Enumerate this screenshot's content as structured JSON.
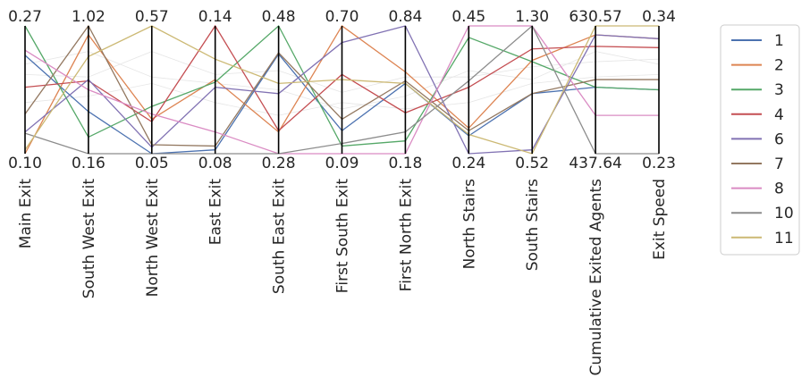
{
  "chart_data": {
    "type": "parallel-coordinates",
    "title": "",
    "axes": [
      {
        "name": "Main Exit",
        "min": "0.10",
        "max": "0.27"
      },
      {
        "name": "South West Exit",
        "min": "0.16",
        "max": "1.02"
      },
      {
        "name": "North West Exit",
        "min": "0.05",
        "max": "0.57"
      },
      {
        "name": "East Exit",
        "min": "0.08",
        "max": "0.14"
      },
      {
        "name": "South East Exit",
        "min": "0.28",
        "max": "0.48"
      },
      {
        "name": "First South Exit",
        "min": "0.09",
        "max": "0.70"
      },
      {
        "name": "First North Exit",
        "min": "0.18",
        "max": "0.84"
      },
      {
        "name": "North Stairs",
        "min": "0.24",
        "max": "0.45"
      },
      {
        "name": "South Stairs",
        "min": "0.52",
        "max": "1.30"
      },
      {
        "name": "Cumulative Exited Agents",
        "min": "437.64",
        "max": "630.57"
      },
      {
        "name": "Exit Speed",
        "min": "0.23",
        "max": "0.34"
      }
    ],
    "series": [
      {
        "name": "1",
        "color": "#4c72b0",
        "values": [
          0.77,
          0.33,
          0.0,
          0.03,
          0.78,
          0.18,
          0.55,
          0.14,
          0.47,
          0.52,
          0.5
        ]
      },
      {
        "name": "2",
        "color": "#dd8452",
        "values": [
          0.0,
          0.93,
          0.27,
          0.58,
          0.17,
          1.0,
          0.64,
          0.2,
          0.73,
          0.93,
          0.9
        ]
      },
      {
        "name": "3",
        "color": "#55a868",
        "values": [
          1.0,
          0.13,
          0.37,
          0.56,
          1.0,
          0.06,
          0.1,
          0.91,
          0.72,
          0.52,
          0.5
        ]
      },
      {
        "name": "4",
        "color": "#c44e52",
        "values": [
          0.52,
          0.57,
          0.25,
          1.0,
          0.18,
          0.62,
          0.32,
          0.52,
          0.82,
          0.84,
          0.83
        ]
      },
      {
        "name": "6",
        "color": "#8172b3",
        "values": [
          0.17,
          0.58,
          0.05,
          0.52,
          0.47,
          0.87,
          1.0,
          0.0,
          0.03,
          0.93,
          0.9
        ]
      },
      {
        "name": "7",
        "color": "#937860",
        "values": [
          0.31,
          1.0,
          0.07,
          0.06,
          0.79,
          0.27,
          0.57,
          0.18,
          0.47,
          0.58,
          0.58
        ]
      },
      {
        "name": "8",
        "color": "#da8bc3",
        "values": [
          0.81,
          0.5,
          0.31,
          0.17,
          0.0,
          0.0,
          0.0,
          1.0,
          1.0,
          0.3,
          0.3
        ]
      },
      {
        "name": "10",
        "color": "#8c8c8c",
        "values": [
          0.16,
          0.0,
          0.0,
          0.0,
          0.0,
          0.08,
          0.17,
          0.57,
          1.0,
          0.0,
          0.0
        ]
      },
      {
        "name": "11",
        "color": "#ccb974",
        "values": [
          0.03,
          0.76,
          1.0,
          0.74,
          0.55,
          0.58,
          0.55,
          0.15,
          0.0,
          1.0,
          1.0
        ]
      }
    ],
    "legend_placement": "right",
    "grid": false
  }
}
